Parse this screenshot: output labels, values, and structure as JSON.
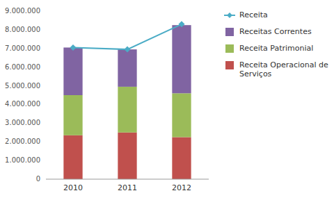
{
  "chart_data": {
    "type": "bar",
    "stacked": true,
    "grid": false,
    "legend": "right",
    "categories": [
      "2010",
      "2011",
      "2012"
    ],
    "series": [
      {
        "name": "Receita Operacional de\nServiços",
        "type": "bar",
        "color": "#C0504D",
        "values": [
          2350000,
          2500000,
          2250000
        ]
      },
      {
        "name": "Receita Patrimonial",
        "type": "bar",
        "color": "#9BBB59",
        "values": [
          2150000,
          2450000,
          2350000
        ]
      },
      {
        "name": "Receitas Correntes",
        "type": "bar",
        "color": "#8064A2",
        "values": [
          2550000,
          2000000,
          3650000
        ]
      },
      {
        "name": "Receita",
        "type": "line",
        "color": "#4BACC6",
        "marker": "diamond",
        "line_style": "solid",
        "values": [
          7050000,
          6950000,
          8300000
        ]
      }
    ],
    "ylim": [
      0,
      9000000
    ],
    "yticks": [
      0,
      {
        "value": 1000000,
        "label": "1.000.000"
      },
      {
        "value": 2000000,
        "label": "2.000.000"
      },
      {
        "value": 3000000,
        "label": "3.000.000"
      },
      {
        "value": 4000000,
        "label": "4.000.000"
      },
      {
        "value": 5000000,
        "label": "5.000.000"
      },
      {
        "value": 6000000,
        "label": "6.000.000"
      },
      {
        "value": 7000000,
        "label": "7.000.000"
      },
      {
        "value": 8000000,
        "label": "8.000.000"
      },
      {
        "value": 9000000,
        "label": "9.000.000"
      }
    ]
  }
}
